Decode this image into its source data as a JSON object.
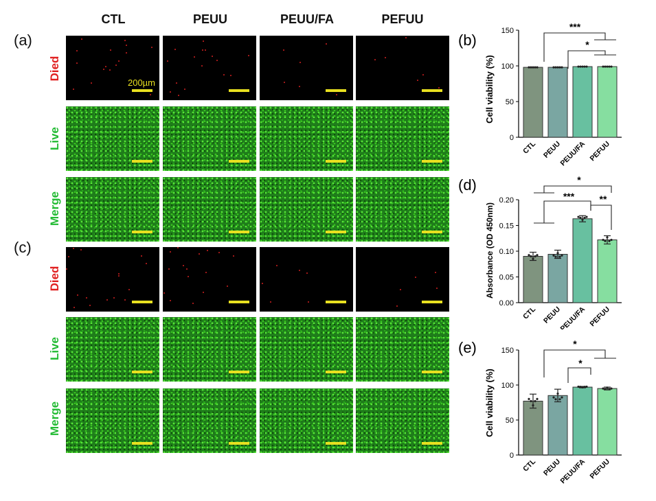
{
  "columns": [
    "CTL",
    "PEUU",
    "PEUU/FA",
    "PEFUU"
  ],
  "panel_labels": {
    "a": "(a)",
    "b": "(b)",
    "c": "(c)",
    "d": "(d)",
    "e": "(e)"
  },
  "row_labels": [
    "Died",
    "Live",
    "Merge"
  ],
  "scale_bar": "200µm",
  "colors": {
    "died": "#e02020",
    "live": "#22bb33",
    "scale": "#e8e020",
    "bars": [
      "#7f947f",
      "#7aa6a2",
      "#68c0a0",
      "#86dea0"
    ]
  },
  "chart_data": [
    {
      "type": "bar",
      "panel": "(b)",
      "categories": [
        "CTL",
        "PEUU",
        "PEUU/FA",
        "PEFUU"
      ],
      "values": [
        98,
        98,
        99,
        99
      ],
      "ylabel": "Cell viability (%)",
      "ylim": [
        0,
        150
      ],
      "yticks": [
        "0",
        "50",
        "100",
        "150"
      ],
      "significance": [
        "***",
        "*"
      ]
    },
    {
      "type": "bar",
      "panel": "(d)",
      "categories": [
        "CTL",
        "PEUU",
        "PEUU/FA",
        "PEFUU"
      ],
      "values": [
        0.09,
        0.094,
        0.163,
        0.122
      ],
      "errors": [
        0.008,
        0.008,
        0.006,
        0.008
      ],
      "ylabel": "Absorbance (OD 450nm)",
      "ylim": [
        0,
        0.2
      ],
      "yticks": [
        "0.00",
        "0.05",
        "0.10",
        "0.15",
        "0.20"
      ],
      "significance": [
        "*",
        "***",
        "**"
      ]
    },
    {
      "type": "bar",
      "panel": "(e)",
      "categories": [
        "CTL",
        "PEUU",
        "PEUU/FA",
        "PEFUU"
      ],
      "values": [
        77,
        85,
        97,
        95
      ],
      "errors": [
        10,
        9,
        1,
        2
      ],
      "ylabel": "Cell viability (%)",
      "ylim": [
        0,
        150
      ],
      "yticks": [
        "0",
        "50",
        "100",
        "150"
      ],
      "significance": [
        "*",
        "*"
      ]
    }
  ]
}
